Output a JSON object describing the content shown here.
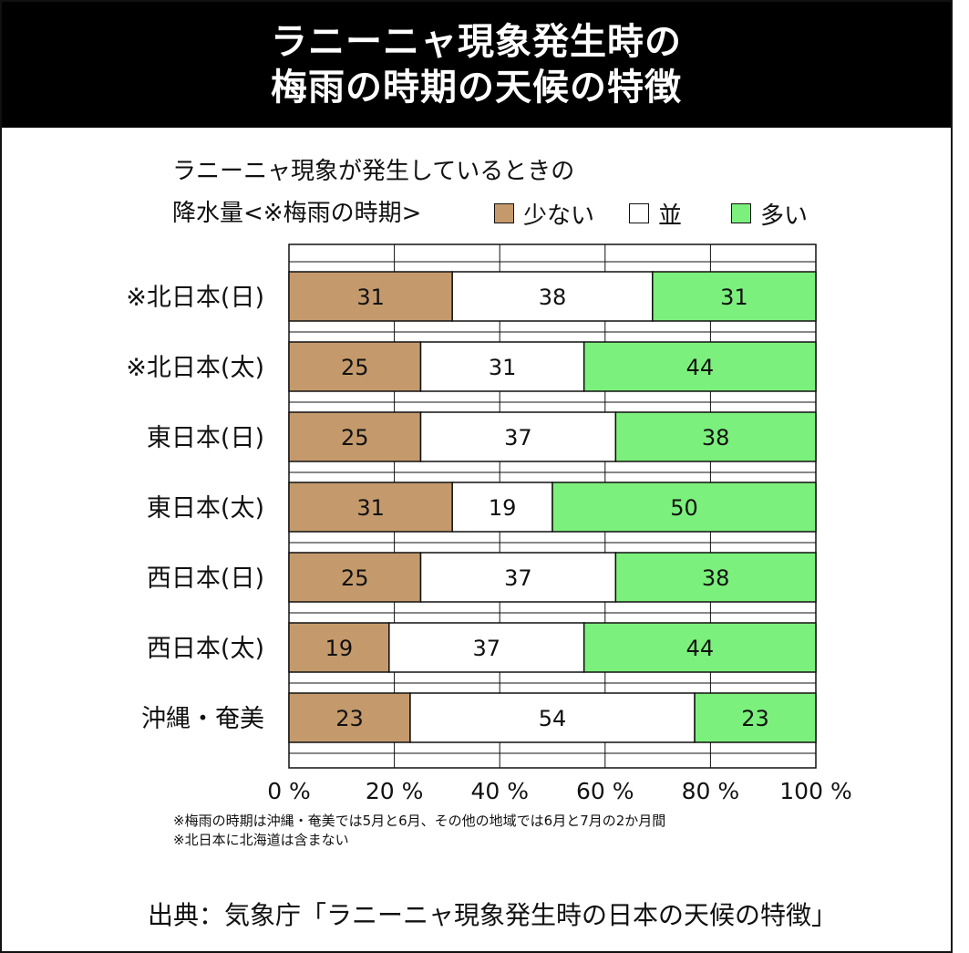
{
  "header": {
    "title_line1": "ラニーニャ現象発生時の",
    "title_line2": "梅雨の時期の天候の特徴"
  },
  "subtitle": {
    "line1": "ラニーニャ現象が発生しているときの",
    "line2": "降水量<※梅雨の時期>"
  },
  "legend": [
    {
      "label": "少ない",
      "color": "#c49a6c"
    },
    {
      "label": "並",
      "color": "#ffffff"
    },
    {
      "label": "多い",
      "color": "#7cf07c"
    }
  ],
  "notes": [
    "※梅雨の時期は沖縄・奄美では5月と6月、その他の地域では6月と7月の2か月間",
    "※北日本に北海道は含まない"
  ],
  "source": "出典：気象庁「ラニーニャ現象発生時の日本の天候の特徴」",
  "chart_data": {
    "type": "bar",
    "orientation": "horizontal",
    "stacked": true,
    "categories": [
      "※北日本(日)",
      "※北日本(太)",
      "東日本(日)",
      "東日本(太)",
      "西日本(日)",
      "西日本(太)",
      "沖縄・奄美"
    ],
    "series": [
      {
        "name": "少ない",
        "color": "#c49a6c",
        "values": [
          31,
          25,
          25,
          31,
          25,
          19,
          23
        ]
      },
      {
        "name": "並",
        "color": "#ffffff",
        "values": [
          38,
          31,
          37,
          19,
          37,
          37,
          54
        ]
      },
      {
        "name": "多い",
        "color": "#7cf07c",
        "values": [
          31,
          44,
          38,
          50,
          38,
          44,
          23
        ]
      }
    ],
    "xlim": [
      0,
      100
    ],
    "x_ticks": [
      "0 %",
      "20 %",
      "40 %",
      "60 %",
      "80 %",
      "100 %"
    ],
    "grid": true
  }
}
